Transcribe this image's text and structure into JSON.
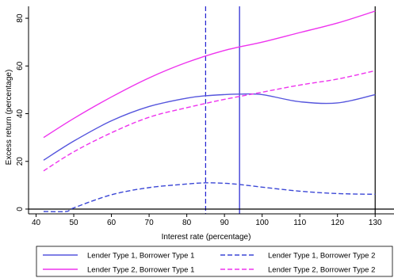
{
  "chart_data": {
    "type": "line",
    "xlabel": "Interest rate (percentage)",
    "ylabel": "Excess return (percentage)",
    "xlim": [
      38,
      135
    ],
    "ylim": [
      -2,
      85
    ],
    "xticks": [
      40,
      50,
      60,
      70,
      80,
      90,
      100,
      110,
      120,
      130
    ],
    "yticks": [
      0,
      20,
      40,
      60,
      80
    ],
    "grid": false,
    "legend_position": "bottom",
    "reference_lines": [
      {
        "x": 85,
        "style": "dashed",
        "color": "#1f1fd0"
      },
      {
        "x": 94,
        "style": "solid",
        "color": "#1f1fd0"
      },
      {
        "x": 130,
        "style": "solid",
        "color": "#000000"
      },
      {
        "y": 0,
        "style": "solid",
        "color": "#000000"
      }
    ],
    "series": [
      {
        "name": "Lender Type 1, Borrower Type 1",
        "color": "#5555dd",
        "dash": "solid",
        "x": [
          42,
          50,
          60,
          70,
          80,
          85,
          90,
          94,
          100,
          110,
          120,
          130
        ],
        "y": [
          20.5,
          28.5,
          37,
          43,
          46.5,
          47.5,
          48,
          48.2,
          48,
          45,
          44.5,
          48
        ]
      },
      {
        "name": "Lender Type 1, Borrower Type 2",
        "color": "#3b47d6",
        "dash": "dashed",
        "x": [
          42,
          48,
          50,
          60,
          70,
          80,
          85,
          90,
          94,
          100,
          110,
          120,
          130
        ],
        "y": [
          -1,
          -1,
          0.5,
          6,
          9,
          10.5,
          11,
          10.8,
          10.3,
          9.2,
          7.5,
          6.5,
          6.2
        ]
      },
      {
        "name": "Lender Type 2, Borrower Type 1",
        "color": "#ee33ee",
        "dash": "solid",
        "x": [
          42,
          50,
          60,
          70,
          80,
          90,
          100,
          110,
          120,
          130
        ],
        "y": [
          30,
          38,
          47,
          55,
          61.5,
          66.5,
          70,
          74,
          78,
          83
        ]
      },
      {
        "name": "Lender Type 2, Borrower Type 2",
        "color": "#ee33ee",
        "dash": "dashed",
        "x": [
          42,
          50,
          60,
          70,
          80,
          90,
          100,
          110,
          120,
          130
        ],
        "y": [
          16,
          24,
          32,
          38.5,
          42.5,
          46,
          49,
          52,
          54.5,
          58
        ]
      }
    ],
    "legend": [
      "Lender Type 1, Borrower Type 1",
      "Lender Type 1, Borrower Type 2",
      "Lender Type 2, Borrower Type 1",
      "Lender Type 2, Borrower Type 2"
    ]
  }
}
